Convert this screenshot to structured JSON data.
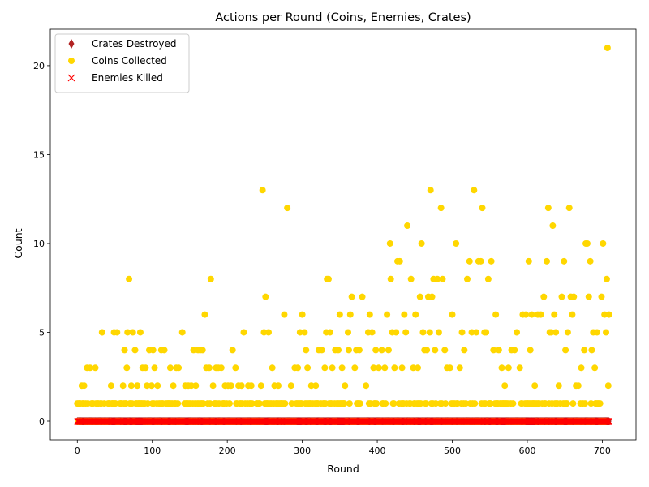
{
  "chart_data": {
    "type": "scatter",
    "title": "Actions per Round (Coins, Enemies, Crates)",
    "xlabel": "Round",
    "ylabel": "Count",
    "xlim": [
      -36,
      745
    ],
    "ylim": [
      -1.05,
      22.05
    ],
    "xticks": [
      0,
      100,
      200,
      300,
      400,
      500,
      600,
      700
    ],
    "yticks": [
      0,
      5,
      10,
      15,
      20
    ],
    "grid": false,
    "legend_position": "top-left",
    "series": [
      {
        "name": "Crates Destroyed",
        "marker": "thin-diamond",
        "color": "#b22222",
        "rounds": "0-709",
        "values_note_constant": 0
      },
      {
        "name": "Coins Collected",
        "marker": "circle",
        "color": "#ffd700",
        "points": [
          [
            3,
            1
          ],
          [
            6,
            2
          ],
          [
            9,
            2
          ],
          [
            11,
            1
          ],
          [
            13,
            3
          ],
          [
            17,
            3
          ],
          [
            21,
            1
          ],
          [
            24,
            3
          ],
          [
            27,
            1
          ],
          [
            33,
            5
          ],
          [
            36,
            1
          ],
          [
            41,
            1
          ],
          [
            45,
            2
          ],
          [
            49,
            5
          ],
          [
            53,
            5
          ],
          [
            57,
            1
          ],
          [
            61,
            2
          ],
          [
            63,
            4
          ],
          [
            66,
            3
          ],
          [
            67,
            5
          ],
          [
            69,
            8
          ],
          [
            72,
            2
          ],
          [
            74,
            5
          ],
          [
            77,
            4
          ],
          [
            80,
            2
          ],
          [
            84,
            5
          ],
          [
            87,
            3
          ],
          [
            91,
            3
          ],
          [
            93,
            2
          ],
          [
            96,
            4
          ],
          [
            99,
            2
          ],
          [
            101,
            4
          ],
          [
            103,
            3
          ],
          [
            107,
            2
          ],
          [
            112,
            4
          ],
          [
            116,
            4
          ],
          [
            120,
            1
          ],
          [
            124,
            3
          ],
          [
            128,
            2
          ],
          [
            132,
            3
          ],
          [
            135,
            3
          ],
          [
            140,
            5
          ],
          [
            144,
            2
          ],
          [
            148,
            2
          ],
          [
            152,
            2
          ],
          [
            155,
            4
          ],
          [
            158,
            2
          ],
          [
            161,
            4
          ],
          [
            164,
            4
          ],
          [
            167,
            4
          ],
          [
            170,
            6
          ],
          [
            172,
            3
          ],
          [
            176,
            3
          ],
          [
            178,
            8
          ],
          [
            181,
            2
          ],
          [
            185,
            3
          ],
          [
            188,
            3
          ],
          [
            192,
            3
          ],
          [
            197,
            2
          ],
          [
            201,
            2
          ],
          [
            205,
            2
          ],
          [
            207,
            4
          ],
          [
            211,
            3
          ],
          [
            215,
            2
          ],
          [
            219,
            2
          ],
          [
            222,
            5
          ],
          [
            228,
            2
          ],
          [
            232,
            2
          ],
          [
            240,
            1
          ],
          [
            245,
            2
          ],
          [
            247,
            13
          ],
          [
            249,
            5
          ],
          [
            251,
            7
          ],
          [
            255,
            5
          ],
          [
            260,
            3
          ],
          [
            263,
            2
          ],
          [
            268,
            2
          ],
          [
            272,
            1
          ],
          [
            276,
            6
          ],
          [
            280,
            12
          ],
          [
            285,
            2
          ],
          [
            290,
            3
          ],
          [
            294,
            3
          ],
          [
            297,
            5
          ],
          [
            300,
            6
          ],
          [
            303,
            5
          ],
          [
            305,
            4
          ],
          [
            307,
            3
          ],
          [
            312,
            2
          ],
          [
            318,
            2
          ],
          [
            322,
            4
          ],
          [
            326,
            4
          ],
          [
            330,
            3
          ],
          [
            332,
            5
          ],
          [
            333,
            8
          ],
          [
            335,
            8
          ],
          [
            337,
            5
          ],
          [
            340,
            3
          ],
          [
            344,
            4
          ],
          [
            348,
            4
          ],
          [
            350,
            6
          ],
          [
            353,
            3
          ],
          [
            357,
            2
          ],
          [
            361,
            5
          ],
          [
            362,
            4
          ],
          [
            364,
            6
          ],
          [
            366,
            7
          ],
          [
            370,
            3
          ],
          [
            372,
            4
          ],
          [
            376,
            4
          ],
          [
            380,
            7
          ],
          [
            385,
            2
          ],
          [
            388,
            5
          ],
          [
            390,
            6
          ],
          [
            393,
            5
          ],
          [
            395,
            3
          ],
          [
            398,
            4
          ],
          [
            402,
            3
          ],
          [
            406,
            4
          ],
          [
            410,
            3
          ],
          [
            413,
            6
          ],
          [
            415,
            4
          ],
          [
            417,
            10
          ],
          [
            418,
            8
          ],
          [
            420,
            5
          ],
          [
            423,
            3
          ],
          [
            425,
            5
          ],
          [
            427,
            9
          ],
          [
            430,
            9
          ],
          [
            433,
            3
          ],
          [
            436,
            6
          ],
          [
            438,
            5
          ],
          [
            440,
            11
          ],
          [
            443,
            1
          ],
          [
            445,
            8
          ],
          [
            448,
            3
          ],
          [
            451,
            6
          ],
          [
            454,
            3
          ],
          [
            457,
            7
          ],
          [
            459,
            10
          ],
          [
            461,
            5
          ],
          [
            463,
            4
          ],
          [
            466,
            4
          ],
          [
            468,
            7
          ],
          [
            470,
            5
          ],
          [
            471,
            13
          ],
          [
            473,
            7
          ],
          [
            475,
            8
          ],
          [
            477,
            4
          ],
          [
            480,
            8
          ],
          [
            482,
            5
          ],
          [
            485,
            12
          ],
          [
            487,
            8
          ],
          [
            490,
            4
          ],
          [
            493,
            3
          ],
          [
            497,
            3
          ],
          [
            500,
            6
          ],
          [
            505,
            10
          ],
          [
            510,
            3
          ],
          [
            513,
            5
          ],
          [
            516,
            4
          ],
          [
            520,
            8
          ],
          [
            523,
            9
          ],
          [
            526,
            5
          ],
          [
            529,
            13
          ],
          [
            532,
            5
          ],
          [
            535,
            9
          ],
          [
            538,
            9
          ],
          [
            540,
            12
          ],
          [
            543,
            5
          ],
          [
            545,
            5
          ],
          [
            548,
            8
          ],
          [
            552,
            9
          ],
          [
            555,
            4
          ],
          [
            558,
            6
          ],
          [
            562,
            4
          ],
          [
            566,
            3
          ],
          [
            570,
            2
          ],
          [
            575,
            3
          ],
          [
            579,
            4
          ],
          [
            583,
            4
          ],
          [
            586,
            5
          ],
          [
            590,
            3
          ],
          [
            594,
            6
          ],
          [
            598,
            6
          ],
          [
            602,
            9
          ],
          [
            604,
            4
          ],
          [
            606,
            6
          ],
          [
            610,
            2
          ],
          [
            614,
            6
          ],
          [
            618,
            6
          ],
          [
            622,
            7
          ],
          [
            626,
            9
          ],
          [
            628,
            12
          ],
          [
            630,
            5
          ],
          [
            632,
            5
          ],
          [
            634,
            11
          ],
          [
            636,
            6
          ],
          [
            638,
            5
          ],
          [
            642,
            2
          ],
          [
            646,
            7
          ],
          [
            649,
            9
          ],
          [
            651,
            4
          ],
          [
            654,
            5
          ],
          [
            656,
            12
          ],
          [
            658,
            7
          ],
          [
            660,
            6
          ],
          [
            662,
            7
          ],
          [
            665,
            2
          ],
          [
            668,
            2
          ],
          [
            672,
            3
          ],
          [
            676,
            4
          ],
          [
            678,
            10
          ],
          [
            680,
            10
          ],
          [
            682,
            7
          ],
          [
            684,
            9
          ],
          [
            686,
            4
          ],
          [
            688,
            5
          ],
          [
            690,
            3
          ],
          [
            693,
            5
          ],
          [
            697,
            1
          ],
          [
            699,
            7
          ],
          [
            701,
            10
          ],
          [
            703,
            6
          ],
          [
            705,
            5
          ],
          [
            706,
            8
          ],
          [
            707,
            21
          ],
          [
            708,
            2
          ],
          [
            709,
            6
          ]
        ],
        "baseline_rounds": "0-709",
        "baseline_value_note": "most rounds 0 or 1"
      },
      {
        "name": "Enemies Killed",
        "marker": "x",
        "color": "#ff0000",
        "rounds": "0-709",
        "values_note_constant": 0
      }
    ]
  }
}
